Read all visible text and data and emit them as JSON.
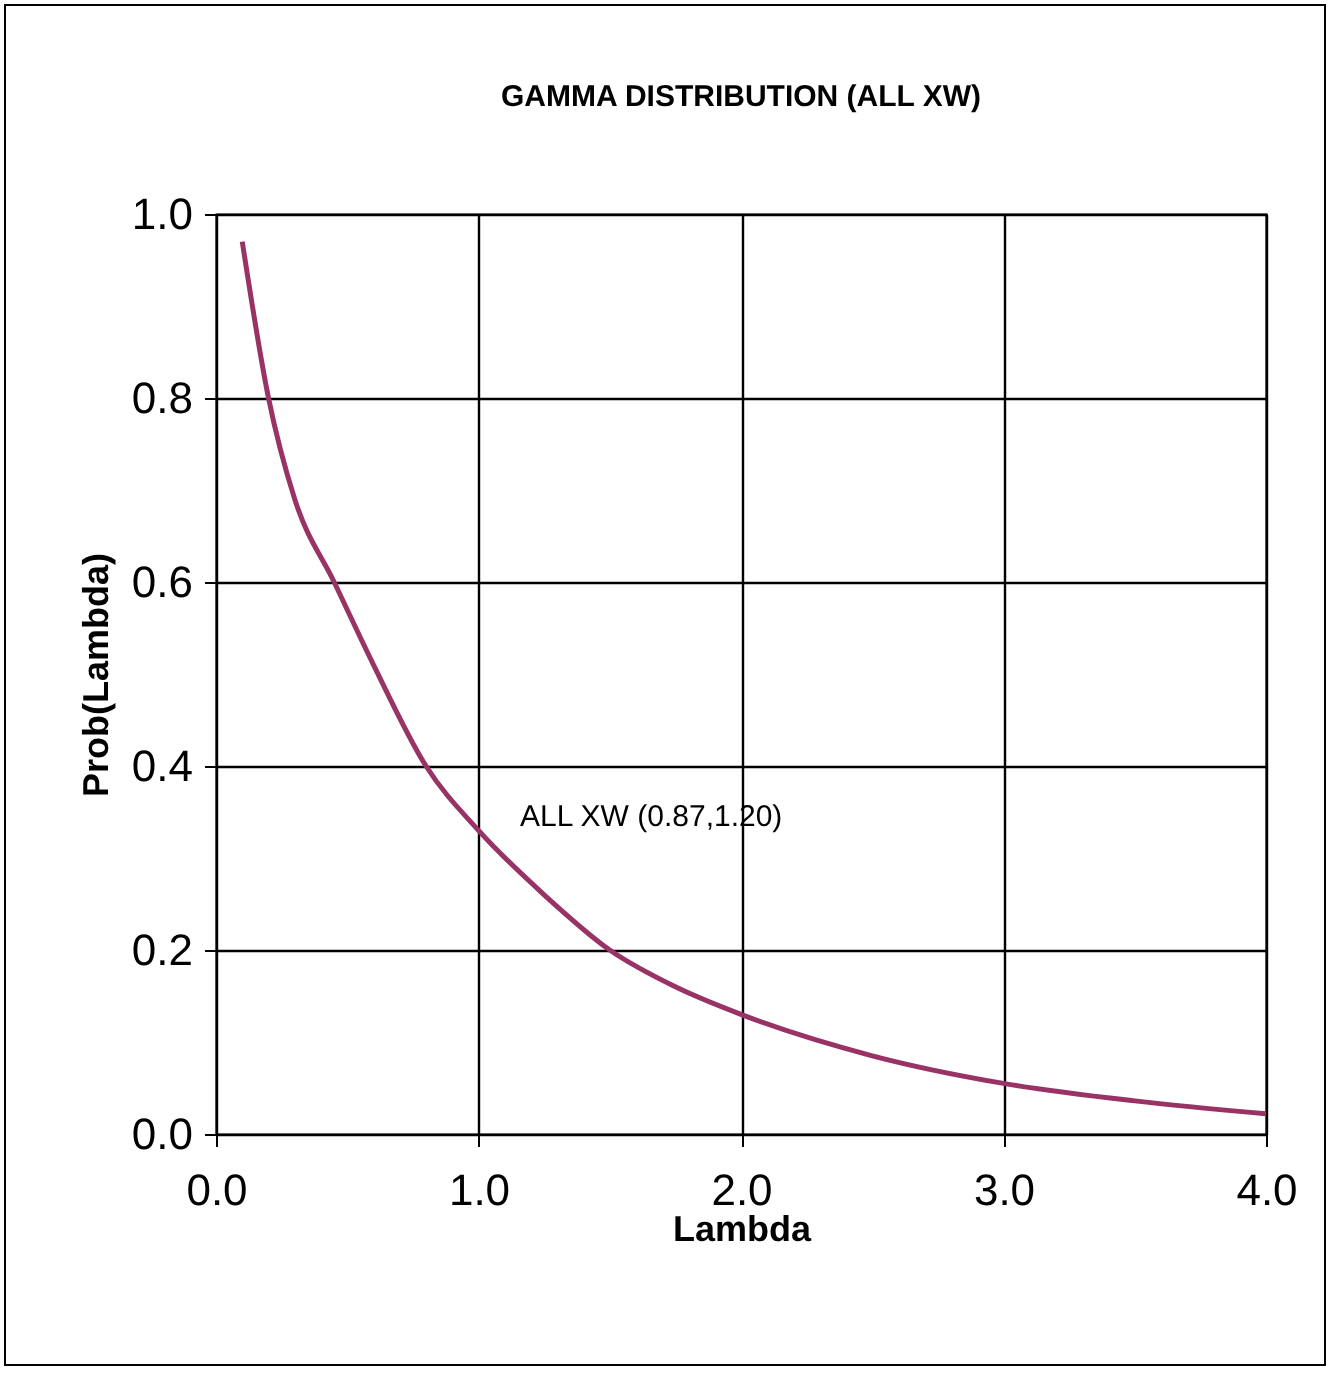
{
  "chart_data": {
    "type": "line",
    "title": "GAMMA DISTRIBUTION (ALL XW)",
    "xlabel": "Lambda",
    "ylabel": "Prob(Lambda)",
    "x": [
      0.1,
      0.2,
      0.3,
      0.45,
      0.6,
      0.8,
      1.0,
      1.25,
      1.5,
      1.75,
      2.0,
      2.5,
      3.0,
      3.5,
      4.0
    ],
    "series": [
      {
        "color": "#993366",
        "values": [
          0.97,
          0.8,
          0.69,
          0.6,
          0.51,
          0.4,
          0.33,
          0.26,
          0.2,
          0.16,
          0.13,
          0.085,
          0.055,
          0.036,
          0.022
        ]
      }
    ],
    "xlim": [
      0,
      4
    ],
    "xticks": [
      {
        "value": 0,
        "label": "0.0"
      },
      {
        "value": 1,
        "label": "1.0"
      },
      {
        "value": 2,
        "label": "2.0"
      },
      {
        "value": 3,
        "label": "3.0"
      },
      {
        "value": 4,
        "label": "4.0"
      }
    ],
    "ylim": [
      0,
      1
    ],
    "yticks": [
      {
        "value": 0,
        "label": "0.0"
      },
      {
        "value": 0.2,
        "label": "0.2"
      },
      {
        "value": 0.4,
        "label": "0.4"
      },
      {
        "value": 0.6,
        "label": "0.6"
      },
      {
        "value": 0.8,
        "label": "0.8"
      },
      {
        "value": 1,
        "label": "1.0"
      }
    ],
    "grid": true,
    "annotations": [
      "ALL XW (0.87,1.20)"
    ]
  }
}
